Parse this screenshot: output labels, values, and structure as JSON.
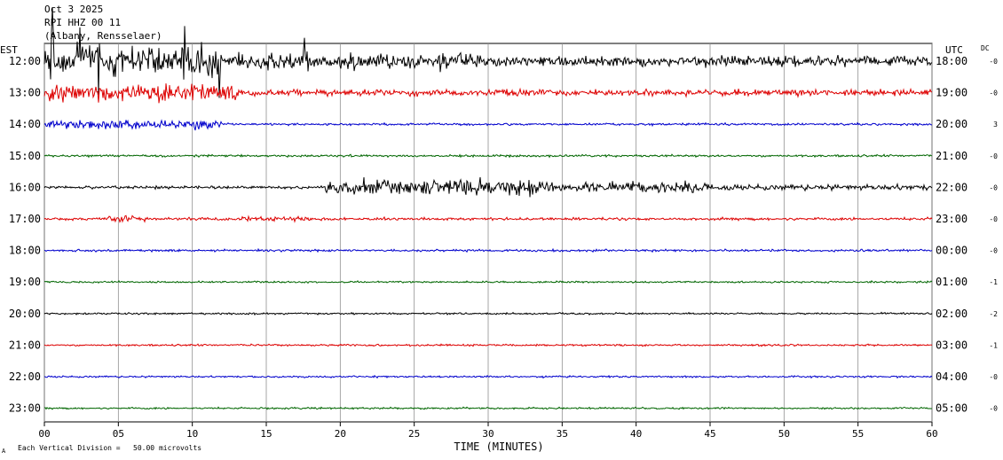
{
  "header": {
    "date": "Oct 3 2025",
    "channel": "RPI HHZ 00 11",
    "station": "(Albany, Rensselaer)"
  },
  "left_axis_label": "EST",
  "right_axis_label": "UTC",
  "dc_label": "DC",
  "footer": {
    "mark": "A",
    "scale_note": "Each Vertical Division =   50.00 microvolts"
  },
  "chart_data": {
    "type": "line",
    "xlabel": "TIME (MINUTES)",
    "xlim": [
      0,
      60
    ],
    "x_ticks": [
      "00",
      "05",
      "10",
      "15",
      "20",
      "25",
      "30",
      "35",
      "40",
      "45",
      "50",
      "55",
      "60"
    ],
    "trace_colors": [
      "#000000",
      "#dd0000",
      "#0000cc",
      "#006600"
    ],
    "rows": [
      {
        "est": "12:00",
        "utc": "18:00",
        "dc": "-0",
        "color": "#000000",
        "noise": 0.35,
        "events": [
          [
            0,
            12,
            1.6
          ],
          [
            12,
            30,
            0.9
          ],
          [
            30,
            60,
            0.55
          ]
        ]
      },
      {
        "est": "13:00",
        "utc": "19:00",
        "dc": "-0",
        "color": "#dd0000",
        "noise": 0.3,
        "events": [
          [
            0,
            13,
            0.9
          ],
          [
            13,
            60,
            0.35
          ]
        ]
      },
      {
        "est": "14:00",
        "utc": "20:00",
        "dc": "3",
        "color": "#0000cc",
        "noise": 0.12,
        "events": [
          [
            0,
            12,
            0.5
          ]
        ]
      },
      {
        "est": "15:00",
        "utc": "21:00",
        "dc": "-0",
        "color": "#006600",
        "noise": 0.12,
        "events": []
      },
      {
        "est": "16:00",
        "utc": "22:00",
        "dc": "-0",
        "color": "#000000",
        "noise": 0.15,
        "events": [
          [
            19,
            34,
            0.9
          ],
          [
            33,
            45,
            0.6
          ],
          [
            45,
            60,
            0.3
          ]
        ]
      },
      {
        "est": "17:00",
        "utc": "23:00",
        "dc": "-0",
        "color": "#dd0000",
        "noise": 0.15,
        "events": [
          [
            4,
            7,
            0.35
          ],
          [
            13,
            18,
            0.3
          ]
        ]
      },
      {
        "est": "18:00",
        "utc": "00:00",
        "dc": "-0",
        "color": "#0000cc",
        "noise": 0.12,
        "events": []
      },
      {
        "est": "19:00",
        "utc": "01:00",
        "dc": "-1",
        "color": "#006600",
        "noise": 0.1,
        "events": []
      },
      {
        "est": "20:00",
        "utc": "02:00",
        "dc": "-2",
        "color": "#000000",
        "noise": 0.1,
        "events": []
      },
      {
        "est": "21:00",
        "utc": "03:00",
        "dc": "-1",
        "color": "#dd0000",
        "noise": 0.1,
        "events": []
      },
      {
        "est": "22:00",
        "utc": "04:00",
        "dc": "-0",
        "color": "#0000cc",
        "noise": 0.1,
        "events": []
      },
      {
        "est": "23:00",
        "utc": "05:00",
        "dc": "-0",
        "color": "#006600",
        "noise": 0.1,
        "events": []
      }
    ],
    "spikes": [
      {
        "row": 0,
        "minute": 0.5,
        "amplitude": 6.0
      },
      {
        "row": 0,
        "minute": 2.3,
        "amplitude": 7.5
      },
      {
        "row": 0,
        "minute": 3.6,
        "amplitude": 4.5
      },
      {
        "row": 0,
        "minute": 4.6,
        "amplitude": 4.0
      },
      {
        "row": 0,
        "minute": 6.0,
        "amplitude": 3.5
      },
      {
        "row": 0,
        "minute": 9.4,
        "amplitude": 3.5
      },
      {
        "row": 0,
        "minute": 10.6,
        "amplitude": 4.0
      },
      {
        "row": 0,
        "minute": 11.8,
        "amplitude": 4.2
      },
      {
        "row": 0,
        "minute": 17.5,
        "amplitude": 2.5
      },
      {
        "row": 4,
        "minute": 27.8,
        "amplitude": 1.2
      },
      {
        "row": 4,
        "minute": 33.7,
        "amplitude": 1.0
      }
    ]
  }
}
